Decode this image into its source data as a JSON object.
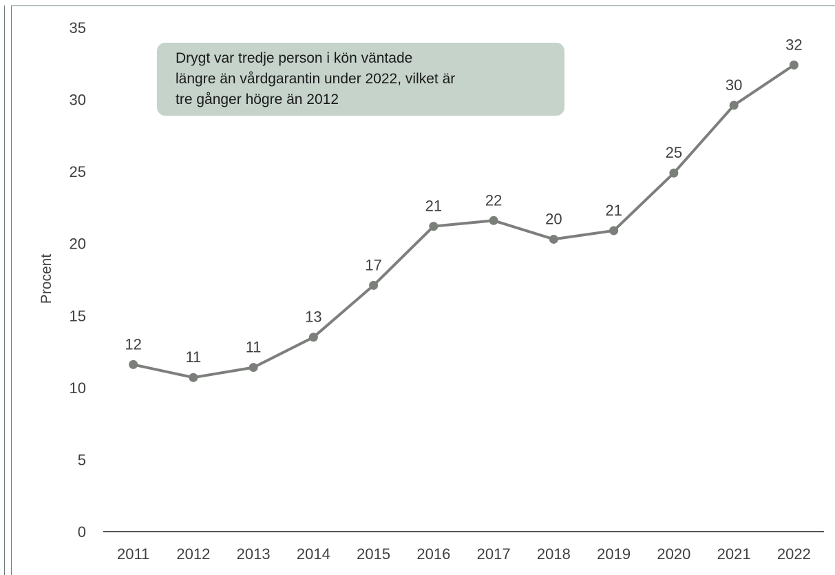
{
  "chart_data": {
    "type": "line",
    "title": "",
    "xlabel": "",
    "ylabel": "Procent",
    "ylim": [
      0,
      35
    ],
    "yticks": [
      0,
      5,
      10,
      15,
      20,
      25,
      30,
      35
    ],
    "grid": false,
    "categories": [
      "2011",
      "2012",
      "2013",
      "2014",
      "2015",
      "2016",
      "2017",
      "2018",
      "2019",
      "2020",
      "2021",
      "2022"
    ],
    "series": [
      {
        "values": [
          11.6,
          10.7,
          11.4,
          13.5,
          17.1,
          21.2,
          21.6,
          20.3,
          20.9,
          24.9,
          29.6,
          32.4
        ],
        "data_labels": [
          "12",
          "11",
          "11",
          "13",
          "17",
          "21",
          "22",
          "20",
          "21",
          "25",
          "30",
          "32"
        ]
      }
    ],
    "annotation": {
      "lines": [
        "Drygt var tredje person i kön väntade",
        "längre än vårdgarantin under 2022, vilket är",
        "tre gånger högre än 2012"
      ]
    },
    "colors": {
      "line": "#7d7f7d",
      "marker": "#7a8079",
      "callout_bg": "#c5d3cb",
      "axis": "#1a1a1a",
      "frame": "#6b7c74"
    }
  }
}
